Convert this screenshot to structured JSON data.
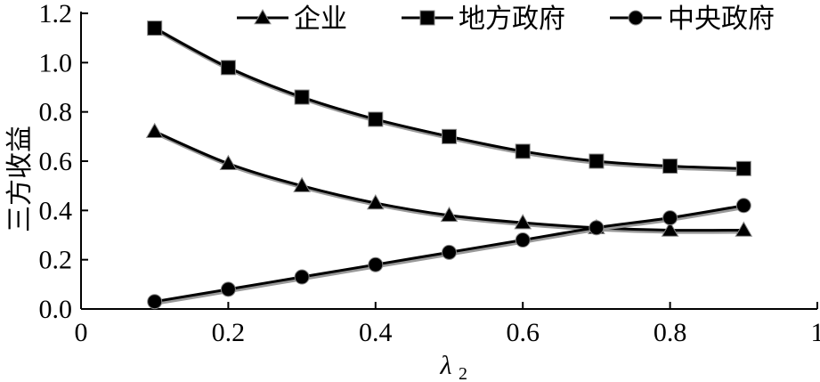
{
  "chart_data": {
    "type": "line",
    "xlabel": "λ",
    "xlabel_sub": "2",
    "ylabel": "三方收益",
    "xlim": [
      0,
      1
    ],
    "ylim": [
      0,
      1.2
    ],
    "x_ticks": [
      "0",
      "0.2",
      "0.4",
      "0.6",
      "0.8",
      "1"
    ],
    "y_ticks": [
      "0.0",
      "0.2",
      "0.4",
      "0.6",
      "0.8",
      "1.0",
      "1.2"
    ],
    "x_tick_values": [
      0,
      0.2,
      0.4,
      0.6,
      0.8,
      1
    ],
    "y_tick_values": [
      0,
      0.2,
      0.4,
      0.6,
      0.8,
      1.0,
      1.2
    ],
    "legend_position": "top-right",
    "x": [
      0.1,
      0.2,
      0.3,
      0.4,
      0.5,
      0.6,
      0.7,
      0.8,
      0.9
    ],
    "series": [
      {
        "name": "企业",
        "marker": "triangle",
        "values": [
          0.72,
          0.59,
          0.5,
          0.43,
          0.38,
          0.35,
          0.33,
          0.32,
          0.32
        ]
      },
      {
        "name": "地方政府",
        "marker": "square",
        "values": [
          1.14,
          0.98,
          0.86,
          0.77,
          0.7,
          0.64,
          0.6,
          0.58,
          0.57
        ]
      },
      {
        "name": "中央政府",
        "marker": "circle",
        "values": [
          0.03,
          0.08,
          0.13,
          0.18,
          0.23,
          0.28,
          0.33,
          0.37,
          0.42
        ]
      }
    ]
  }
}
